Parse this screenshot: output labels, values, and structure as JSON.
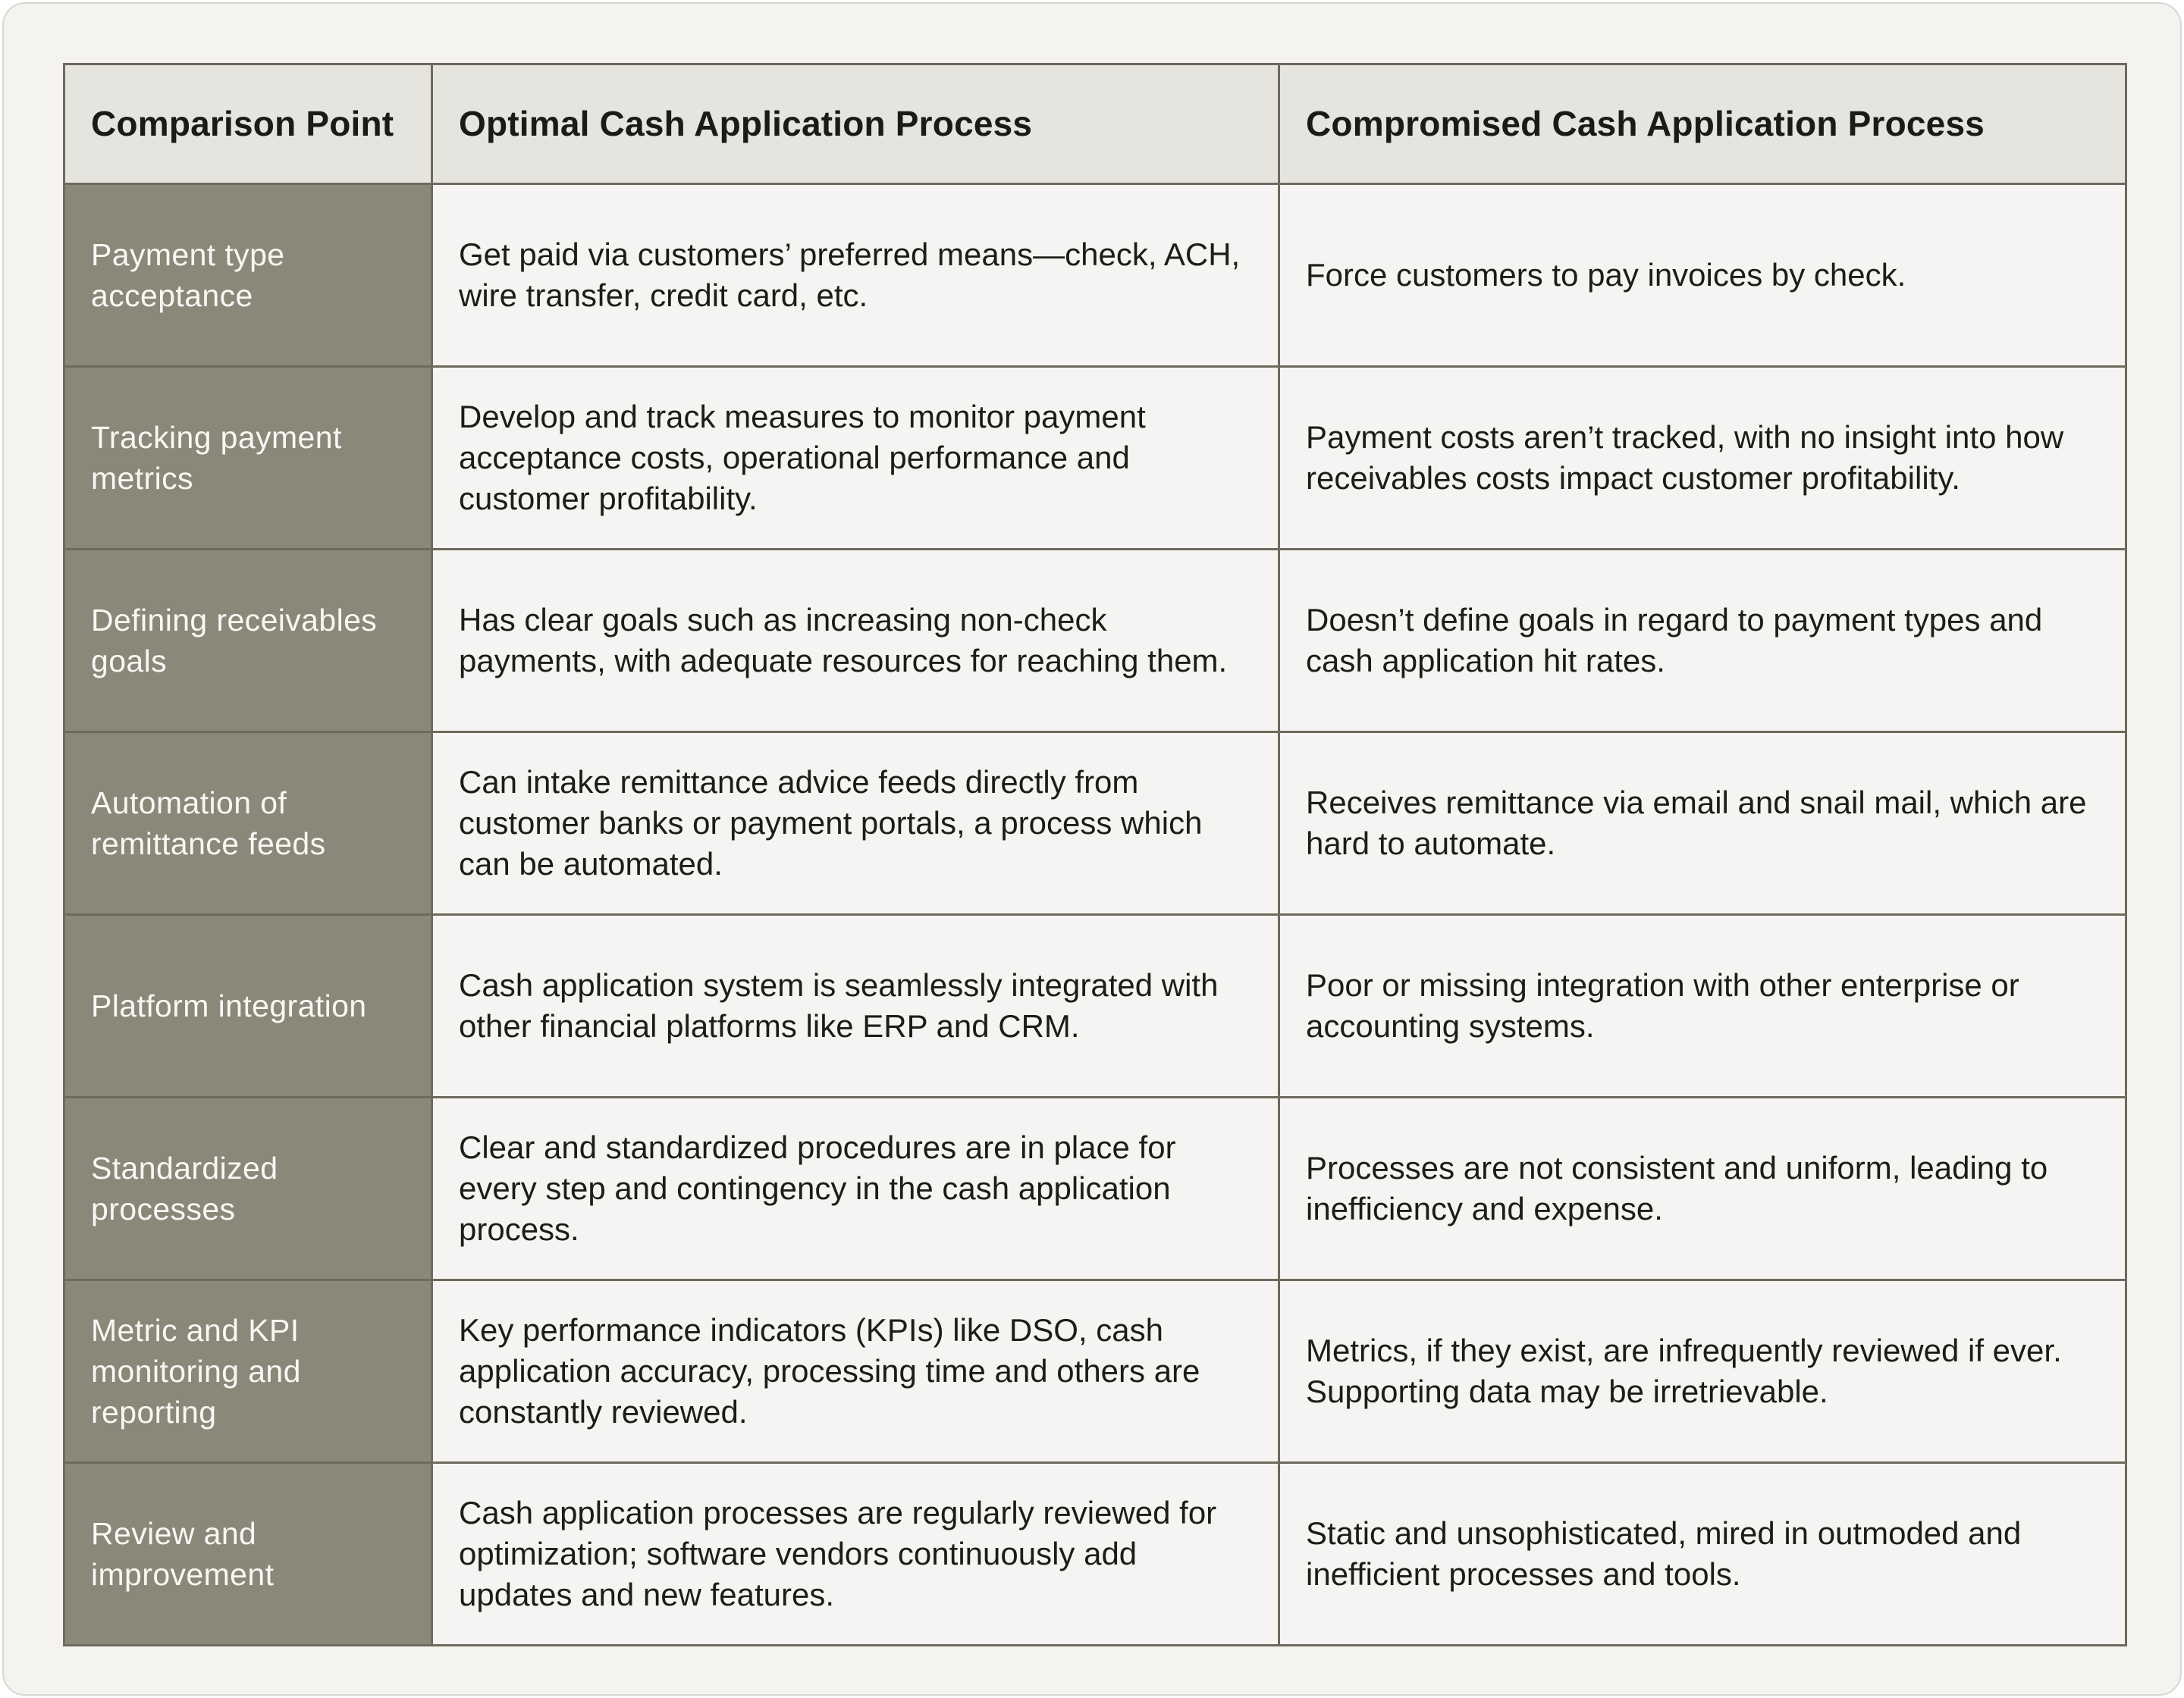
{
  "colors": {
    "page_background": "#f4f3f0",
    "page_border": "#d8d7d2",
    "header_row_background": "#e5e4df",
    "label_column_background": "#8a8879",
    "cell_background": "#f5f4f2",
    "table_border": "#6c6b5c",
    "heading_text": "#1b1b15",
    "body_text": "#1d1d17",
    "label_text": "#f8f7f3"
  },
  "table": {
    "headers": [
      "Comparison Point",
      "Optimal Cash Application Process",
      "Compromised Cash Application Process"
    ],
    "rows": [
      {
        "label": "Payment type acceptance",
        "optimal": "Get paid via customers’ preferred means—check, ACH, wire transfer, credit card, etc.",
        "compromised": "Force customers to pay invoices by check."
      },
      {
        "label": "Tracking payment metrics",
        "optimal": "Develop and track measures to monitor payment acceptance costs, operational performance and customer profitability.",
        "compromised": "Payment costs aren’t tracked, with no insight into how receivables costs impact customer profitability."
      },
      {
        "label": "Defining receivables goals",
        "optimal": "Has clear goals such as increasing non-check payments, with adequate resources for reaching them.",
        "compromised": "Doesn’t define goals in regard to payment types and cash application hit rates."
      },
      {
        "label": "Automation of remittance feeds",
        "optimal": "Can intake remittance advice feeds directly from customer banks or payment portals, a process which can be automated.",
        "compromised": "Receives remittance via email and snail mail, which are hard to automate."
      },
      {
        "label": "Platform integration",
        "optimal": "Cash application system is seamlessly integrated with other financial platforms like ERP and CRM.",
        "compromised": "Poor or missing integration with other enterprise or accounting systems."
      },
      {
        "label": "Standardized processes",
        "optimal": "Clear and standardized procedures are in place for every step and contingency in the cash application process.",
        "compromised": "Processes are not consistent and uniform, leading to inefficiency and expense."
      },
      {
        "label": "Metric and KPI monitoring and reporting",
        "optimal": "Key performance indicators (KPIs) like DSO, cash application accuracy, processing time and others are constantly reviewed.",
        "compromised": "Metrics, if they exist, are infrequently reviewed if ever. Supporting data may be irretrievable."
      },
      {
        "label": "Review and improvement",
        "optimal": "Cash application processes are regularly reviewed for optimization; software vendors continuously add updates and new features.",
        "compromised": "Static and unsophisticated, mired in outmoded and inefficient processes and tools."
      }
    ]
  }
}
